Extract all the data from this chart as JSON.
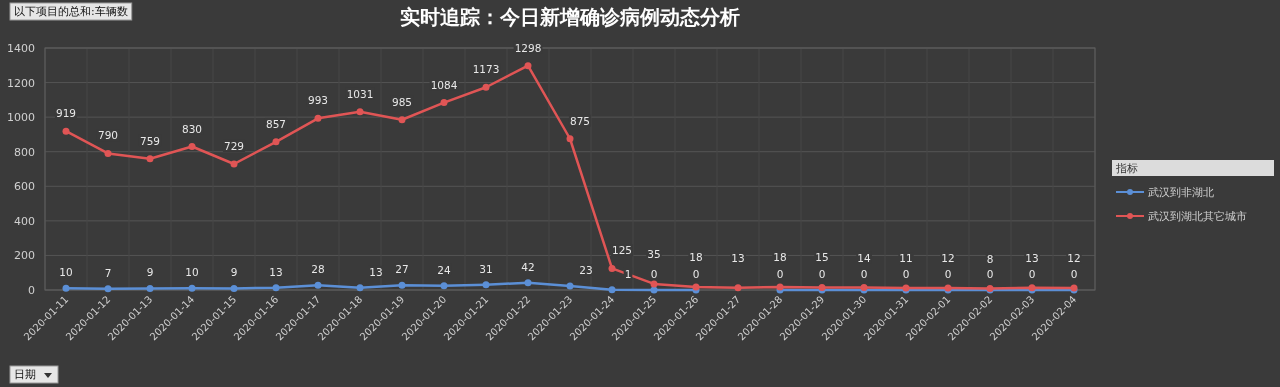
{
  "chart_data": {
    "type": "line",
    "title": "实时追踪：今日新增确诊病例动态分析",
    "annotations": [
      "以下项目的总和:车辆数"
    ],
    "xlabel": "日期",
    "legend_title": "指标",
    "categories": [
      "2020-01-11",
      "2020-01-12",
      "2020-01-13",
      "2020-01-14",
      "2020-01-15",
      "2020-01-16",
      "2020-01-17",
      "2020-01-18",
      "2020-01-19",
      "2020-01-20",
      "2020-01-21",
      "2020-01-22",
      "2020-01-23",
      "2020-01-24",
      "2020-01-25",
      "2020-01-26",
      "2020-01-27",
      "2020-01-28",
      "2020-01-29",
      "2020-01-30",
      "2020-01-31",
      "2020-02-01",
      "2020-02-02",
      "2020-02-03",
      "2020-02-04"
    ],
    "series": [
      {
        "name": "武汉到非湖北",
        "color": "#5b8fd6",
        "values": [
          10,
          7,
          9,
          10,
          9,
          13,
          28,
          13,
          27,
          24,
          31,
          42,
          23,
          1,
          0,
          0,
          null,
          0,
          0,
          0,
          0,
          0,
          0,
          0,
          0
        ]
      },
      {
        "name": "武汉到湖北其它城市",
        "color": "#e05555",
        "values": [
          919,
          790,
          759,
          830,
          729,
          857,
          993,
          1031,
          985,
          1084,
          1173,
          1298,
          875,
          125,
          35,
          18,
          13,
          18,
          15,
          14,
          11,
          12,
          8,
          13,
          12
        ]
      }
    ],
    "ylim": [
      0,
      1400
    ],
    "yticks": [
      0,
      200,
      400,
      600,
      800,
      1000,
      1200,
      1400
    ],
    "grid": true,
    "legend": "right",
    "marker": "circle",
    "line_style": "solid",
    "data_labels": true
  }
}
